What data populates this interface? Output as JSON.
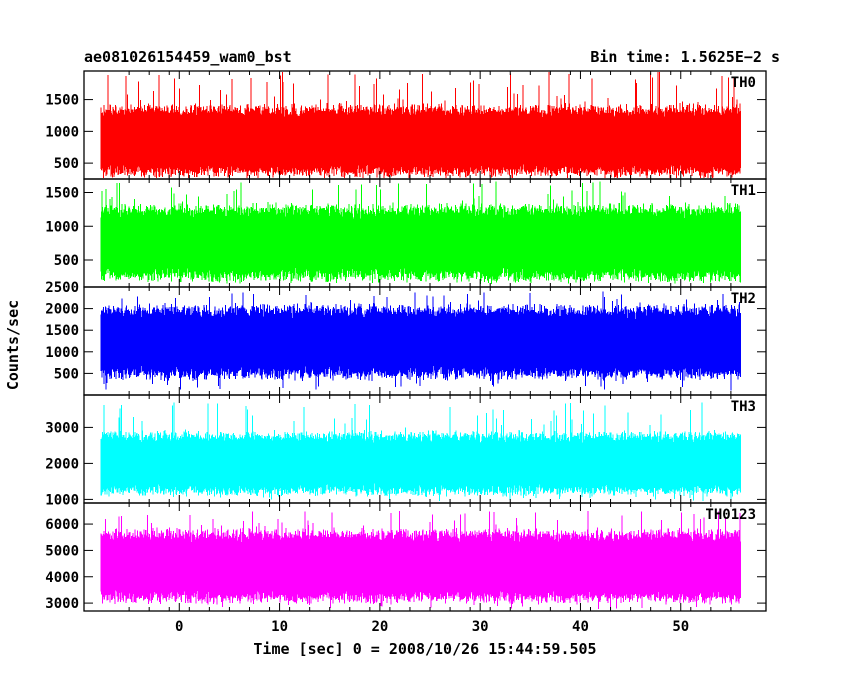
{
  "header": {
    "left_title": "ae081026154459_wam0_bst",
    "right_title": "Bin time: 1.5625E−2 s"
  },
  "axes": {
    "xlabel": "Time [sec] 0 = 2008/10/26 15:44:59.505",
    "ylabel": "Counts/sec"
  },
  "chart_data": {
    "type": "line",
    "title": "ae081026154459_wam0_bst",
    "subtitle": "Bin time: 1.5625E−2 s",
    "xlabel": "Time [sec] 0 = 2008/10/26 15:44:59.505",
    "ylabel": "Counts/sec",
    "xlim": [
      -9.5,
      58.5
    ],
    "data_x_range": [
      -7.8,
      56
    ],
    "x_ticks": [
      0,
      10,
      20,
      30,
      40,
      50
    ],
    "panels": [
      {
        "name": "TH0",
        "color": "#ff0000",
        "ylim": [
          250,
          1950
        ],
        "y_ticks": [
          500,
          1000,
          1500
        ],
        "baseline_range": [
          400,
          1300
        ],
        "peak": 1950,
        "trough": 270
      },
      {
        "name": "TH1",
        "color": "#00ff00",
        "ylim": [
          100,
          1700
        ],
        "y_ticks": [
          500,
          1000,
          1500
        ],
        "baseline_range": [
          300,
          1200
        ],
        "peak": 1700,
        "trough": 150
      },
      {
        "name": "TH2",
        "color": "#0000ff",
        "ylim": [
          0,
          2500
        ],
        "y_ticks": [
          500,
          1000,
          1500,
          2000,
          2500
        ],
        "baseline_range": [
          550,
          1900
        ],
        "peak": 2400,
        "trough": 100
      },
      {
        "name": "TH3",
        "color": "#00ffff",
        "ylim": [
          900,
          3900
        ],
        "y_ticks": [
          1000,
          2000,
          3000
        ],
        "baseline_range": [
          1300,
          2700
        ],
        "peak": 3700,
        "trough": 950
      },
      {
        "name": "TH0123",
        "color": "#ff00ff",
        "ylim": [
          2700,
          6800
        ],
        "y_ticks": [
          3000,
          4000,
          5000,
          6000
        ],
        "baseline_range": [
          3300,
          5500
        ],
        "peak": 6500,
        "trough": 2750
      }
    ]
  }
}
